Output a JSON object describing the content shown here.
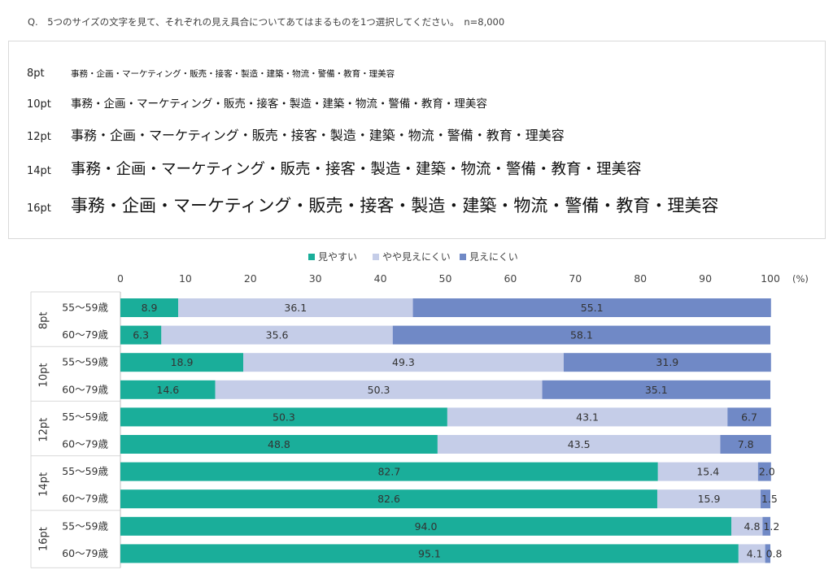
{
  "question": "Q.　5つのサイズの文字を見て、それぞれの見え具合についてあてはまるものを1つ選択してください。　n=8,000",
  "samples": [
    {
      "size_label": "8pt",
      "text": "事務・企画・マーケティング・販売・接客・製造・建築・物流・警備・教育・理美容"
    },
    {
      "size_label": "10pt",
      "text": "事務・企画・マーケティング・販売・接客・製造・建築・物流・警備・教育・理美容"
    },
    {
      "size_label": "12pt",
      "text": "事務・企画・マーケティング・販売・接客・製造・建築・物流・警備・教育・理美容"
    },
    {
      "size_label": "14pt",
      "text": "事務・企画・マーケティング・販売・接客・製造・建築・物流・警備・教育・理美容"
    },
    {
      "size_label": "16pt",
      "text": "事務・企画・マーケティング・販売・接客・製造・建築・物流・警備・教育・理美容"
    }
  ],
  "chart_data": {
    "type": "bar",
    "orientation": "horizontal",
    "stacked": true,
    "title": "",
    "xlabel": "",
    "ylabel": "",
    "xlim": [
      0,
      100
    ],
    "x_ticks": [
      0,
      10,
      20,
      30,
      40,
      50,
      60,
      70,
      80,
      90,
      100
    ],
    "unit": "(%)",
    "legend_position": "top",
    "groups": [
      {
        "name": "8pt",
        "categories": [
          "55～59歳",
          "60～79歳"
        ]
      },
      {
        "name": "10pt",
        "categories": [
          "55～59歳",
          "60～79歳"
        ]
      },
      {
        "name": "12pt",
        "categories": [
          "55～59歳",
          "60～79歳"
        ]
      },
      {
        "name": "14pt",
        "categories": [
          "55～59歳",
          "60～79歳"
        ]
      },
      {
        "name": "16pt",
        "categories": [
          "55～59歳",
          "60～79歳"
        ]
      }
    ],
    "series": [
      {
        "name": "見やすい",
        "color": "#1aae9a",
        "values": [
          8.9,
          6.3,
          18.9,
          14.6,
          50.3,
          48.8,
          82.7,
          82.6,
          94.0,
          95.1
        ]
      },
      {
        "name": "やや見えにくい",
        "color": "#c5cde8",
        "values": [
          36.1,
          35.6,
          49.3,
          50.3,
          43.1,
          43.5,
          15.4,
          15.9,
          4.8,
          4.1
        ]
      },
      {
        "name": "見えにくい",
        "color": "#7089c6",
        "values": [
          55.1,
          58.1,
          31.9,
          35.1,
          6.7,
          7.8,
          2.0,
          1.5,
          1.2,
          0.8
        ]
      }
    ]
  }
}
